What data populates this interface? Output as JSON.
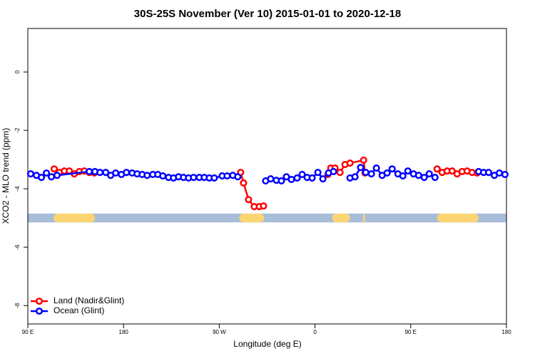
{
  "chart_data": {
    "type": "line",
    "title": "30S-25S November (Ver 10)   2015-01-01 to 2020-12-18",
    "xlabel": "Longitude (deg E)",
    "ylabel": "XCO2 - MLO trend (ppm)",
    "xlim": [
      90,
      540
    ],
    "ylim": [
      -8.63,
      1.49
    ],
    "xticks": [
      {
        "value": 90,
        "label": "90 E"
      },
      180,
      {
        "value": 270,
        "label": "90 W"
      },
      {
        "value": 360,
        "label": "0"
      },
      {
        "value": 450,
        "label": "90 E"
      },
      {
        "value": 540,
        "label": "180"
      }
    ],
    "yticks": [
      0,
      -2,
      -4,
      -6,
      -8
    ],
    "legend": "bottom-left",
    "band": {
      "y": [
        -5.15,
        -4.85
      ],
      "color": "#a7bdd9",
      "land_color": "#fbd572",
      "land": [
        [
          114.2,
          153.1
        ],
        [
          288.8,
          312.3
        ],
        [
          376,
          393
        ],
        [
          405,
          407
        ],
        [
          474.8,
          513.8
        ]
      ]
    },
    "series": [
      {
        "name": "Land (Nadir&Glint)",
        "color": "#ff0000",
        "x": [
          114.8,
          119.6,
          124.3,
          129.0,
          133.7,
          138.4,
          143.1,
          147.8,
          152.5,
          240,
          290.1,
          292.8,
          297.5,
          302.9,
          307.6,
          311.6,
          340,
          372.1,
          374.8,
          378.8,
          383.5,
          388.2,
          392.9,
          405.7,
          407.0,
          440,
          474.8,
          479.5,
          484.2,
          488.9,
          493.6,
          498.3,
          503.0,
          507.7,
          512.4
        ],
        "values": [
          -3.32,
          -3.44,
          -3.39,
          -3.39,
          -3.49,
          -3.41,
          -3.39,
          -3.44,
          -3.46,
          null,
          -3.44,
          -3.8,
          -4.37,
          -4.61,
          -4.61,
          -4.59,
          null,
          -3.51,
          -3.29,
          -3.29,
          -3.44,
          -3.17,
          -3.12,
          -3.02,
          -3.46,
          null,
          -3.32,
          -3.44,
          -3.39,
          -3.39,
          -3.49,
          -3.41,
          -3.39,
          -3.44,
          -3.46
        ]
      },
      {
        "name": "Ocean (Glint)",
        "color": "#0000ff",
        "x": [
          92.7,
          98.1,
          102.8,
          107.5,
          112.2,
          117.5,
          147.8,
          153.1,
          157.8,
          163.2,
          167.9,
          172.6,
          178.0,
          182.7,
          188.1,
          192.8,
          197.5,
          202.2,
          207.5,
          212.2,
          216.9,
          222.3,
          227.0,
          231.7,
          236.4,
          241.1,
          245.8,
          251.2,
          255.9,
          260.6,
          265.3,
          272.7,
          277.4,
          282.7,
          287.4,
          300,
          313.6,
          318.3,
          323.7,
          328.4,
          333.1,
          337.8,
          343.2,
          347.9,
          352.6,
          357.3,
          362.7,
          367.4,
          372.7,
          377.4,
          385,
          392.9,
          397.6,
          402.9,
          407.7,
          413.0,
          417.7,
          423.1,
          427.8,
          432.5,
          437.9,
          442.6,
          447.3,
          452.6,
          457.4,
          462.7,
          467.4,
          472.8,
          490,
          513.8,
          518.5,
          523.2,
          528.6,
          533.3,
          538.6
        ],
        "values": [
          -3.49,
          -3.54,
          -3.61,
          -3.46,
          -3.59,
          -3.54,
          -3.41,
          -3.41,
          -3.44,
          -3.44,
          -3.54,
          -3.46,
          -3.51,
          -3.44,
          -3.46,
          -3.49,
          -3.51,
          -3.54,
          -3.51,
          -3.51,
          -3.56,
          -3.61,
          -3.63,
          -3.59,
          -3.61,
          -3.63,
          -3.61,
          -3.61,
          -3.61,
          -3.63,
          -3.63,
          -3.56,
          -3.56,
          -3.54,
          -3.59,
          null,
          -3.73,
          -3.66,
          -3.71,
          -3.73,
          -3.59,
          -3.68,
          -3.63,
          -3.51,
          -3.61,
          -3.63,
          -3.44,
          -3.66,
          -3.46,
          -3.41,
          null,
          -3.63,
          -3.59,
          -3.27,
          -3.44,
          -3.49,
          -3.29,
          -3.54,
          -3.46,
          -3.32,
          -3.49,
          -3.56,
          -3.39,
          -3.49,
          -3.54,
          -3.61,
          -3.49,
          -3.61,
          null,
          -3.41,
          -3.44,
          -3.44,
          -3.54,
          -3.46,
          -3.51
        ]
      }
    ]
  }
}
